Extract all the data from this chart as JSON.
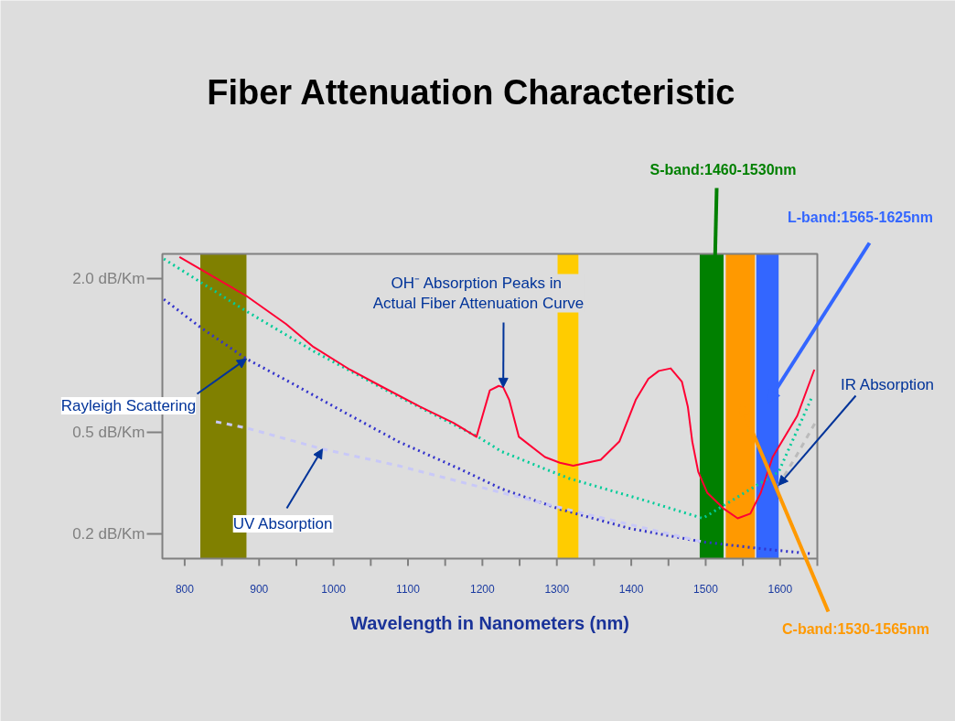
{
  "chart_data": {
    "type": "line",
    "title": "Fiber Attenuation Characteristic",
    "xlabel": "Wavelength in Nanometers (nm)",
    "log": "y",
    "grid": false,
    "xlim": [
      770,
      1650
    ],
    "ylim": [
      0.16,
      2.5
    ],
    "xticks": [
      800,
      {
        "value": 850,
        "label": null
      },
      900,
      {
        "value": 950,
        "label": null
      },
      1000,
      {
        "value": 1050,
        "label": null
      },
      1100,
      {
        "value": 1150,
        "label": null
      },
      1200,
      {
        "value": 1250,
        "label": null
      },
      1300,
      {
        "value": 1350,
        "label": null
      },
      1400,
      {
        "value": 1450,
        "label": null
      },
      1500,
      {
        "value": 1550,
        "label": null
      },
      1600,
      {
        "value": 1650,
        "label": null
      }
    ],
    "yticks": [
      {
        "value": 2,
        "label": "2.0 dB/Km"
      },
      {
        "value": 0.5,
        "label": "0.5 dB/Km"
      },
      {
        "value": 0.2,
        "label": "0.2 dB/Km"
      }
    ],
    "bands": [
      {
        "axis": "x",
        "from": 821,
        "to": 883,
        "color": "#808000"
      },
      {
        "axis": "x",
        "from": 1301,
        "to": 1329,
        "color": "#ffcc00"
      },
      {
        "axis": "x",
        "from": 1492,
        "to": 1524,
        "color": "#008000",
        "label": "S-band:1460-1530nm"
      },
      {
        "axis": "x",
        "from": 1527,
        "to": 1566,
        "color": "#ff9900",
        "label": "C-band:1530-1565nm"
      },
      {
        "axis": "x",
        "from": 1568,
        "to": 1598,
        "color": "#3366ff",
        "label": "L-band:1565-1625nm"
      }
    ],
    "series": [
      {
        "color": "#00cc99",
        "line_style": "dotted",
        "x": [
          772,
          883,
          973,
          1071,
          1194,
          1226,
          1316,
          1419,
          1496,
          1598,
          1619,
          1643
        ],
        "values": [
          2.39,
          1.49,
          1.04,
          0.73,
          0.48,
          0.42,
          0.33,
          0.27,
          0.23,
          0.35,
          0.48,
          0.69
        ]
      },
      {
        "color": "#3333cc",
        "line_style": "dotted",
        "x": [
          772,
          821,
          883,
          940,
          1005,
          1087,
          1169,
          1226,
          1304,
          1398,
          1496,
          1582,
          1643
        ],
        "values": [
          1.66,
          1.29,
          0.97,
          0.79,
          0.62,
          0.46,
          0.36,
          0.3,
          0.25,
          0.21,
          0.186,
          0.174,
          0.167
        ]
      },
      {
        "color": "#c8c8f8",
        "line_style": "dashed",
        "x": [
          842,
          883,
          985,
          1087,
          1226,
          1337,
          1496
        ],
        "values": [
          0.55,
          0.52,
          0.43,
          0.37,
          0.29,
          0.24,
          0.186
        ]
      },
      {
        "color": "#bbbbbb",
        "line_style": "dashed",
        "x": [
          1598,
          1623,
          1648
        ],
        "values": [
          0.31,
          0.41,
          0.55
        ]
      },
      {
        "color": "#ff0033",
        "line_style": "solid",
        "x": [
          793,
          883,
          936,
          973,
          1022,
          1063,
          1116,
          1161,
          1192,
          1210,
          1222,
          1228,
          1236,
          1249,
          1284,
          1304,
          1322,
          1359,
          1384,
          1406,
          1423,
          1437,
          1453,
          1468,
          1476,
          1482,
          1490,
          1502,
          1525,
          1543,
          1560,
          1574,
          1590,
          1623,
          1646
        ],
        "values": [
          2.43,
          1.71,
          1.33,
          1.08,
          0.88,
          0.76,
          0.63,
          0.545,
          0.48,
          0.73,
          0.76,
          0.75,
          0.67,
          0.48,
          0.4,
          0.38,
          0.37,
          0.39,
          0.46,
          0.67,
          0.81,
          0.87,
          0.89,
          0.79,
          0.63,
          0.46,
          0.35,
          0.29,
          0.25,
          0.23,
          0.24,
          0.29,
          0.4,
          0.58,
          0.88
        ]
      }
    ],
    "annotations": [
      {
        "text": "Rayleigh Scattering",
        "x": 883,
        "y": 0.97
      },
      {
        "text": "UV Absorption",
        "x": 985,
        "y": 0.43
      },
      {
        "text": "OH⁻  Absorption Peaks in\nActual Fiber Attenuation Curve",
        "x": 1228,
        "y": 0.75
      },
      {
        "text": "IR Absorption",
        "x": 1598,
        "y": 0.31
      }
    ]
  }
}
